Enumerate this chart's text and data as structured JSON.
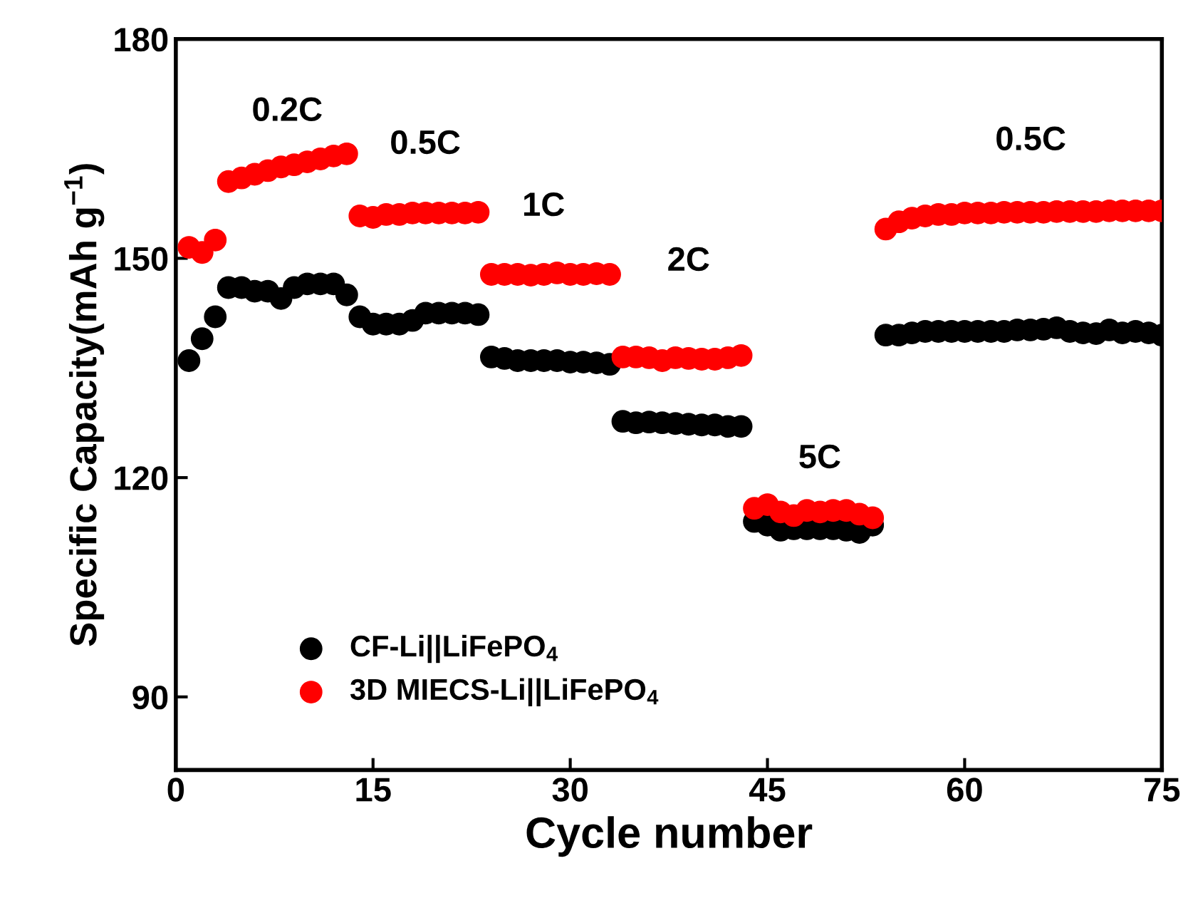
{
  "chart_data": {
    "type": "scatter",
    "xlabel": "Cycle number",
    "ylabel": "Specific Capacity(mAh g$^{−1}$)",
    "xlim": [
      0,
      75
    ],
    "ylim": [
      80,
      180
    ],
    "xticks": [
      0,
      15,
      30,
      45,
      60,
      75
    ],
    "yticks": [
      90,
      120,
      150,
      180
    ],
    "grid": false,
    "legend": "bottom left",
    "marker": "circle",
    "x": [
      1,
      2,
      3,
      4,
      5,
      6,
      7,
      8,
      9,
      10,
      11,
      12,
      13,
      14,
      15,
      16,
      17,
      18,
      19,
      20,
      21,
      22,
      23,
      24,
      25,
      26,
      27,
      28,
      29,
      30,
      31,
      32,
      33,
      34,
      35,
      36,
      37,
      38,
      39,
      40,
      41,
      42,
      43,
      44,
      45,
      46,
      47,
      48,
      49,
      50,
      51,
      52,
      53,
      54,
      55,
      56,
      57,
      58,
      59,
      60,
      61,
      62,
      63,
      64,
      65,
      66,
      67,
      68,
      69,
      70,
      71,
      72,
      73,
      74,
      75
    ],
    "series": [
      {
        "name": "CF-Li||LiFePO$_{4}$",
        "color": "#000000",
        "values": [
          136,
          139,
          142,
          146,
          146,
          145.5,
          145.5,
          144.5,
          146,
          146.5,
          146.5,
          146.5,
          145,
          142,
          141,
          141,
          141,
          141.5,
          142.5,
          142.5,
          142.5,
          142.5,
          142.3,
          136.5,
          136.3,
          136,
          136,
          136,
          136,
          135.8,
          135.8,
          135.7,
          135.5,
          127.7,
          127.5,
          127.6,
          127.5,
          127.4,
          127.3,
          127.2,
          127.2,
          127,
          127,
          114,
          113.5,
          112.8,
          113,
          113,
          113,
          113,
          112.8,
          112.5,
          113.5,
          139.5,
          139.5,
          139.8,
          140,
          140,
          140,
          140,
          140,
          140,
          140,
          140.2,
          140.2,
          140.3,
          140.5,
          140,
          139.8,
          139.7,
          140.2,
          139.8,
          140,
          139.8,
          139.5
        ]
      },
      {
        "name": "3D MIECS-Li||LiFePO$_{4}$",
        "color": "#ff0000",
        "values": [
          151.5,
          150.8,
          152.5,
          160.5,
          161,
          161.5,
          162,
          162.5,
          162.8,
          163.2,
          163.6,
          164,
          164.3,
          155.8,
          155.6,
          156,
          156,
          156.2,
          156.2,
          156.2,
          156.2,
          156.2,
          156.3,
          147.8,
          147.8,
          147.8,
          147.7,
          147.8,
          148,
          147.8,
          147.8,
          147.9,
          147.8,
          136.5,
          136.5,
          136.4,
          136,
          136.4,
          136.3,
          136.2,
          136.2,
          136.4,
          136.7,
          115.8,
          116.3,
          115.3,
          114.8,
          115.5,
          115.3,
          115.5,
          115.5,
          115,
          114.5,
          154,
          155,
          155.5,
          155.8,
          156,
          156,
          156.2,
          156.2,
          156.2,
          156.3,
          156.3,
          156.3,
          156.3,
          156.4,
          156.4,
          156.4,
          156.4,
          156.5,
          156.5,
          156.5,
          156.5,
          156.5
        ]
      }
    ],
    "annotations": [
      "0.2C",
      "0.5C",
      "1C",
      "2C",
      "5C",
      "0.5C"
    ]
  }
}
